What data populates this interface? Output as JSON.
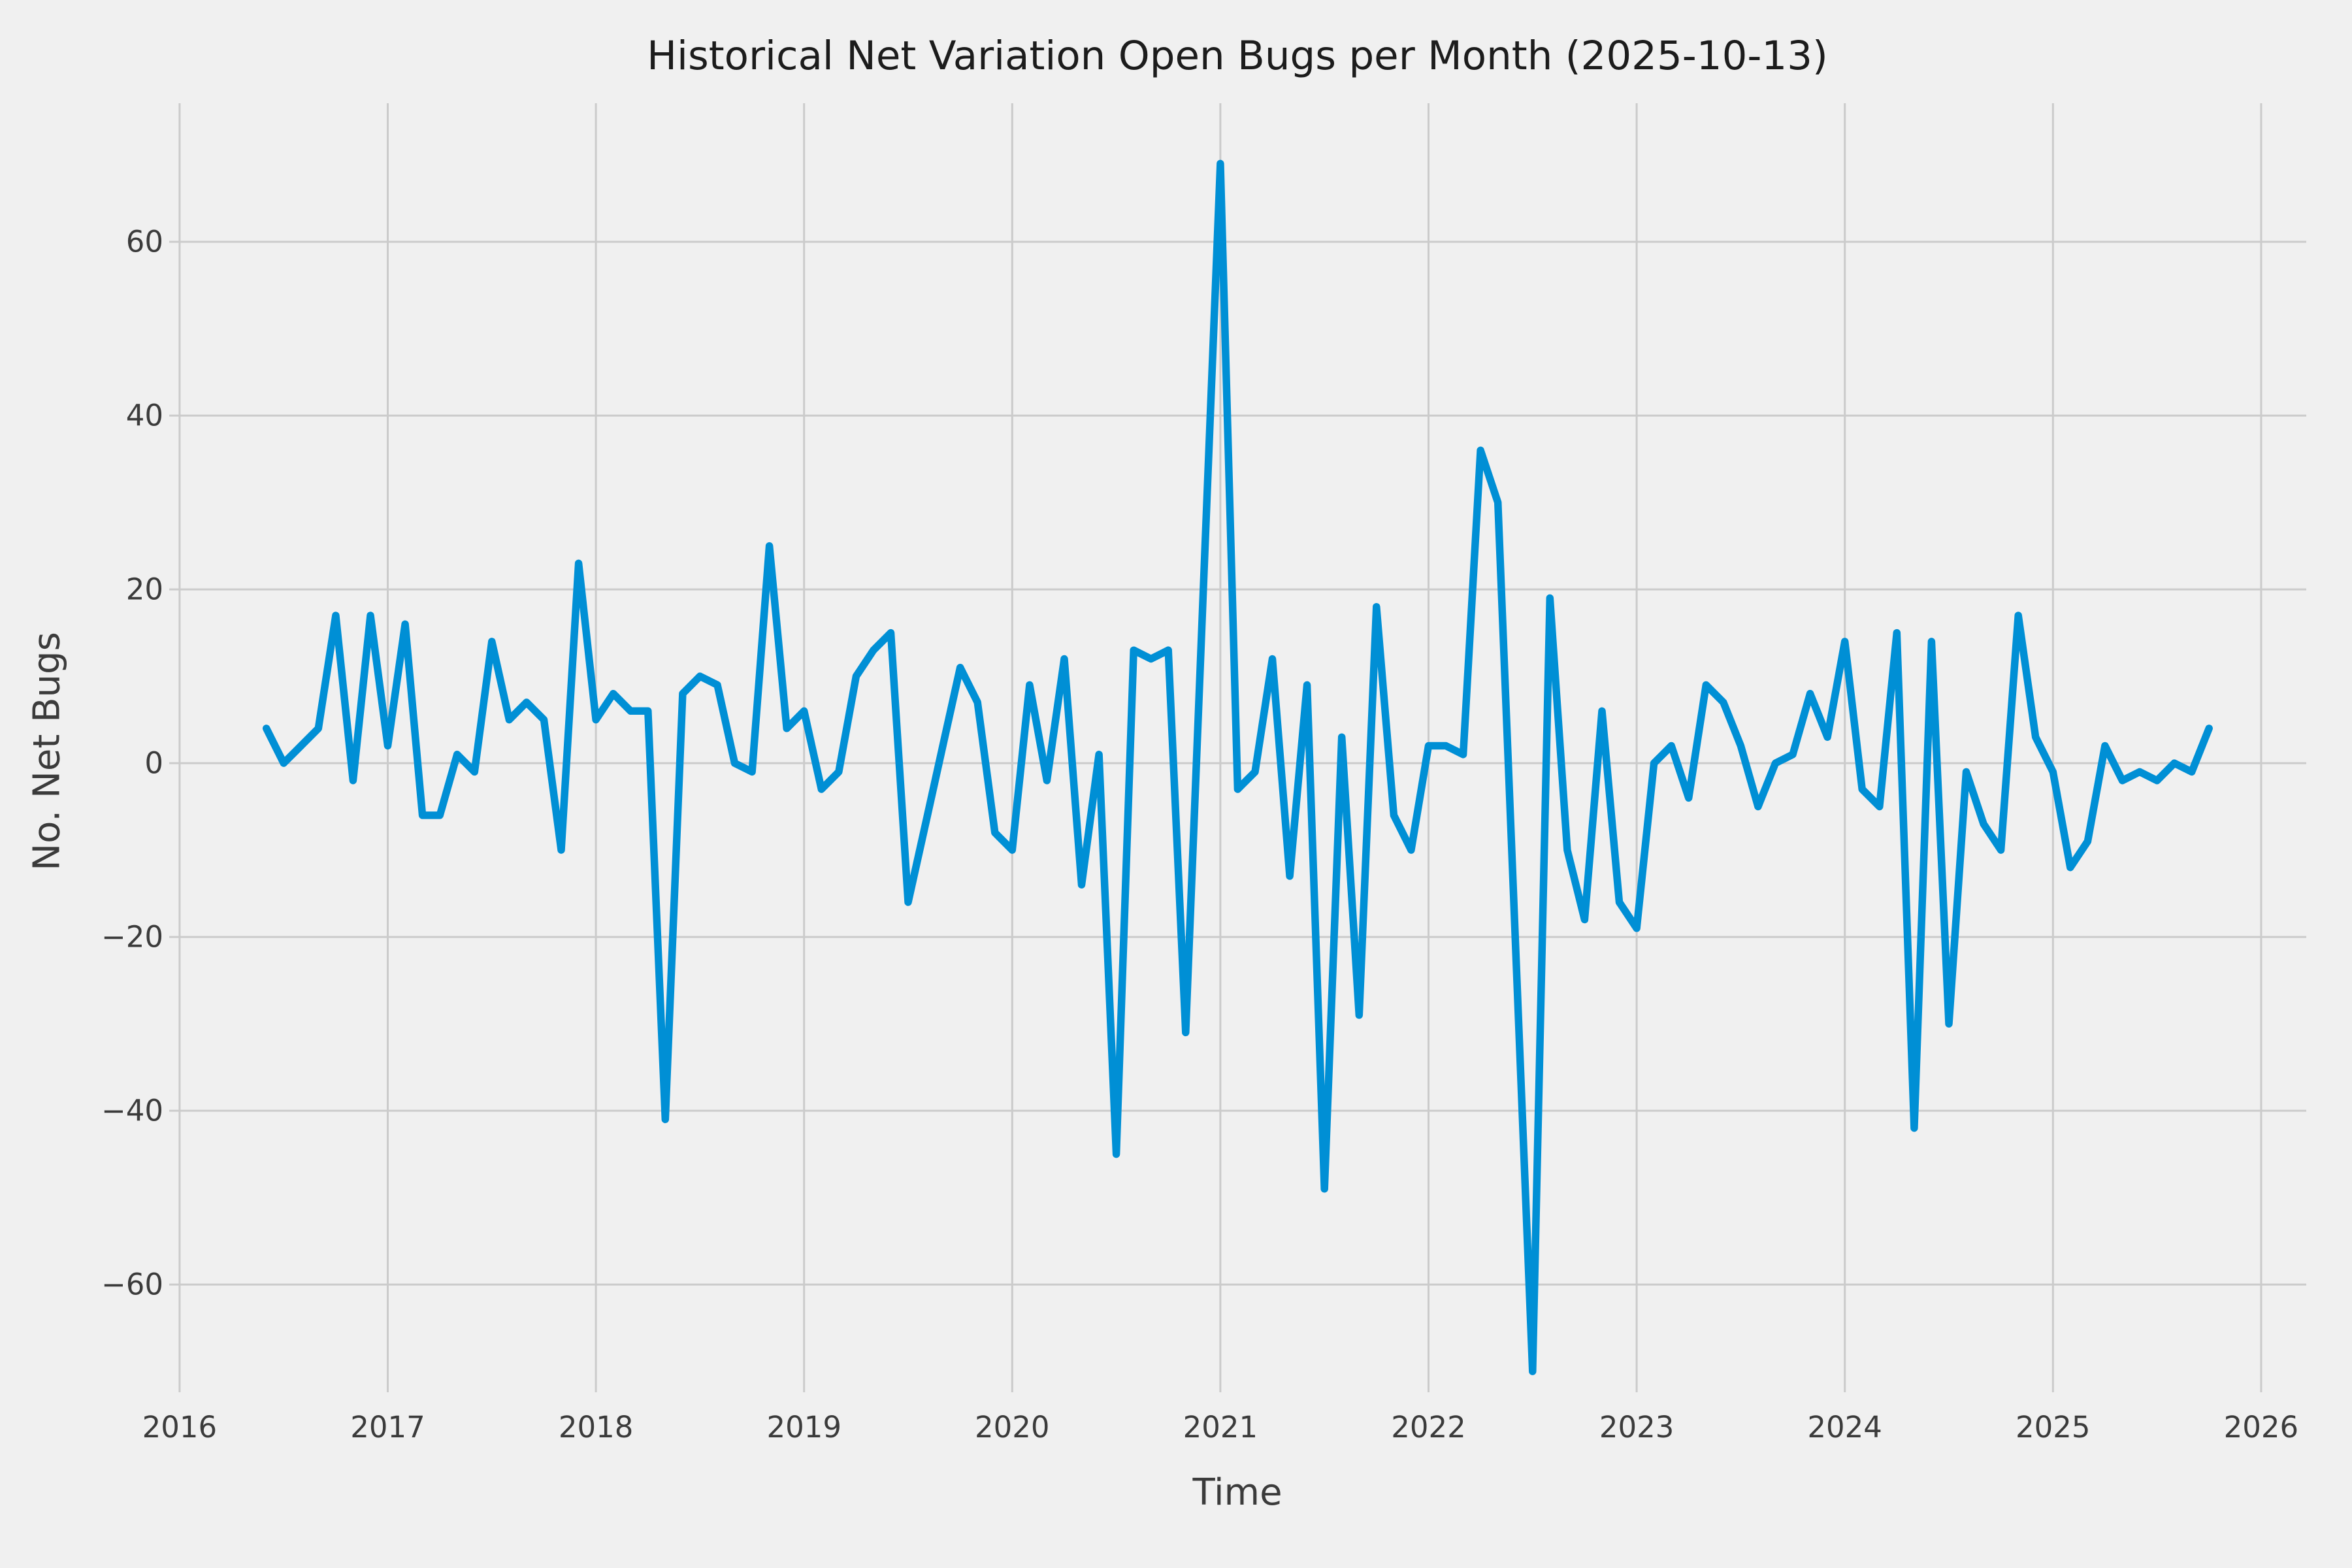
{
  "chart_data": {
    "type": "line",
    "title": "Historical Net Variation Open Bugs per Month (2025-10-13)",
    "xlabel": "Time",
    "ylabel": "No. Net Bugs",
    "legend": "none",
    "grid": true,
    "background_color": "#f0f0f0",
    "grid_color": "#cbcbcb",
    "line_color": "#008fd5",
    "text_color": "#3b3b3b",
    "title_color": "#1c1c1c",
    "x_ticks": [
      2016,
      2017,
      2018,
      2019,
      2020,
      2021,
      2022,
      2023,
      2024,
      2025,
      2026
    ],
    "y_ticks": [
      -60,
      -40,
      -20,
      0,
      20,
      40,
      60
    ],
    "xlim": [
      2015.95,
      2026.217
    ],
    "ylim": [
      -72.4,
      75.95
    ],
    "series": [
      {
        "name": "net-open-bugs",
        "start": "2016-06",
        "freq": "monthly",
        "end": "2025-10",
        "values": [
          4,
          0,
          2,
          4,
          17,
          -2,
          17,
          2,
          16,
          -6,
          -6,
          1,
          -1,
          14,
          5,
          7,
          5,
          -10,
          23,
          5,
          8,
          6,
          6,
          -41,
          8,
          10,
          9,
          0,
          -1,
          25,
          4,
          6,
          -3,
          -1,
          10,
          13,
          15,
          -16,
          -7,
          2,
          11,
          7,
          -8,
          -10,
          9,
          -2,
          12,
          -14,
          1,
          -45,
          13,
          12,
          13,
          -31,
          19,
          69,
          -3,
          -1,
          12,
          -13,
          9,
          -49,
          3,
          -29,
          18,
          -6,
          -10,
          2,
          2,
          1,
          36,
          30,
          -20,
          -70,
          19,
          -10,
          -18,
          6,
          -16,
          -19,
          0,
          2,
          -4,
          9,
          7,
          2,
          -5,
          0,
          1,
          8,
          3,
          14,
          -3,
          -5,
          15,
          -42,
          14,
          -30,
          -1,
          -7,
          -10,
          17,
          3,
          -1,
          -12,
          -9,
          2,
          -2,
          -1,
          -2,
          0,
          -1,
          4
        ]
      }
    ]
  }
}
